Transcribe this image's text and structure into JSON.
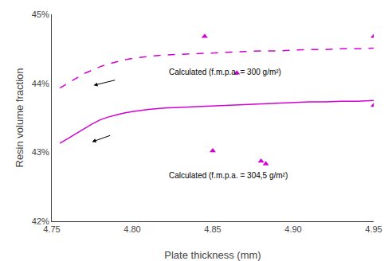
{
  "chart_data": {
    "type": "line",
    "xlabel": "Plate thickness (mm)",
    "ylabel": "Resin volume fraction",
    "xlim": [
      4.75,
      4.95
    ],
    "ylim": [
      0.42,
      0.45
    ],
    "xticks": [
      4.75,
      {
        "value": 4.8,
        "label": "4.80"
      },
      4.85,
      {
        "value": 4.9,
        "label": "4.90"
      },
      4.95
    ],
    "yticks": [
      {
        "value": 0.42,
        "label": "42%"
      },
      {
        "value": 0.43,
        "label": "43%"
      },
      {
        "value": 0.44,
        "label": "44%"
      },
      {
        "value": 0.45,
        "label": "45%"
      }
    ],
    "grid": false,
    "series": [
      {
        "type": "line",
        "line_style": "solid",
        "color": "#d400d4",
        "x": [
          4.755,
          4.76,
          4.765,
          4.77,
          4.775,
          4.78,
          4.785,
          4.79,
          4.795,
          4.8,
          4.81,
          4.82,
          4.83,
          4.84,
          4.85,
          4.86,
          4.87,
          4.88,
          4.89,
          4.9,
          4.91,
          4.92,
          4.93,
          4.94,
          4.95
        ],
        "values": [
          0.4313,
          0.432,
          0.4328,
          0.4335,
          0.4341,
          0.4347,
          0.4351,
          0.4354,
          0.4357,
          0.4359,
          0.4362,
          0.4364,
          0.4365,
          0.4366,
          0.4367,
          0.4368,
          0.4369,
          0.437,
          0.4371,
          0.4372,
          0.4373,
          0.4373,
          0.4374,
          0.4374,
          0.4375
        ]
      },
      {
        "type": "line",
        "line_style": "dashed",
        "color": "#d400d4",
        "x": [
          4.755,
          4.76,
          4.765,
          4.77,
          4.775,
          4.78,
          4.785,
          4.79,
          4.795,
          4.8,
          4.81,
          4.82,
          4.83,
          4.84,
          4.85,
          4.86,
          4.87,
          4.88,
          4.89,
          4.9,
          4.91,
          4.92,
          4.93,
          4.94,
          4.95
        ],
        "values": [
          0.4393,
          0.44,
          0.4407,
          0.4414,
          0.4419,
          0.4424,
          0.4428,
          0.4431,
          0.4434,
          0.4436,
          0.4439,
          0.4441,
          0.4442,
          0.4443,
          0.4444,
          0.4445,
          0.4446,
          0.4447,
          0.4447,
          0.4448,
          0.4449,
          0.4449,
          0.445,
          0.445,
          0.4451
        ]
      },
      {
        "type": "scatter",
        "marker": "triangle-up",
        "color": "#d400d4",
        "x": [
          4.85,
          4.88,
          4.883,
          4.95
        ],
        "values": [
          0.4302,
          0.4287,
          0.4283,
          0.4368
        ]
      },
      {
        "type": "scatter",
        "marker": "triangle-up",
        "color": "#d400d4",
        "x": [
          4.845,
          4.865,
          4.95
        ],
        "values": [
          0.4468,
          0.4415,
          0.4468
        ]
      }
    ],
    "annotations": [
      {
        "text": "Calculated (f.m.p.a. = 300 g/m²)",
        "x": 4.822,
        "y": 0.4408
      },
      {
        "text": "Calculated (f.m.p.a. = 304,5 g/m²)",
        "x": 4.822,
        "y": 0.4258
      }
    ],
    "arrows": [
      {
        "from": [
          4.79,
          0.4405
        ],
        "to": [
          4.776,
          0.4397
        ]
      },
      {
        "from": [
          4.787,
          0.4325
        ],
        "to": [
          4.775,
          0.4315
        ]
      }
    ]
  }
}
